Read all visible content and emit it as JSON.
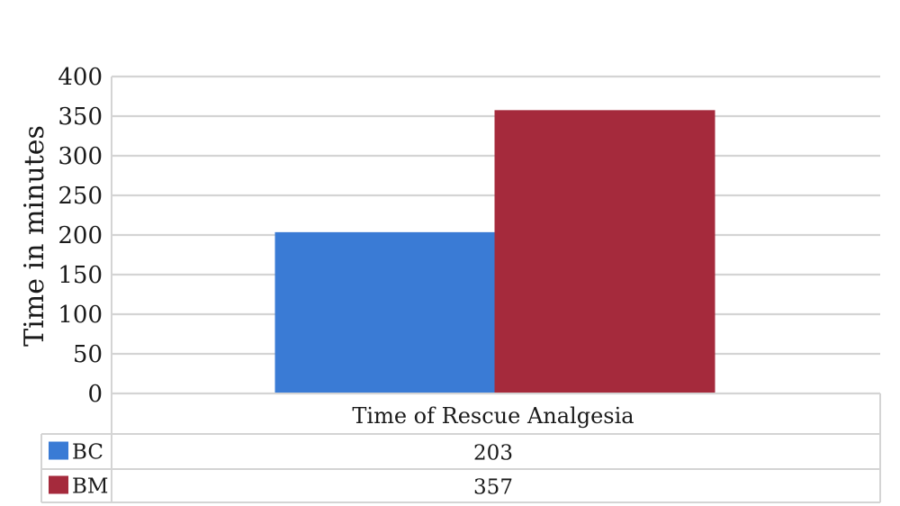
{
  "chart_data": {
    "type": "bar",
    "categories": [
      "Time of Rescue Analgesia"
    ],
    "series": [
      {
        "name": "BC",
        "values": [
          203
        ],
        "color": "#3a7bd5"
      },
      {
        "name": "BM",
        "values": [
          357
        ],
        "color": "#a52a3c"
      }
    ],
    "ylabel": "Time in minutes",
    "ylim": [
      0,
      400
    ],
    "yticks": [
      "0",
      "50",
      "100",
      "150",
      "200",
      "250",
      "300",
      "350",
      "400"
    ],
    "grid": true,
    "legend": "data-table",
    "data_table": [
      {
        "series": "BC",
        "value": "203"
      },
      {
        "series": "BM",
        "value": "357"
      }
    ]
  }
}
